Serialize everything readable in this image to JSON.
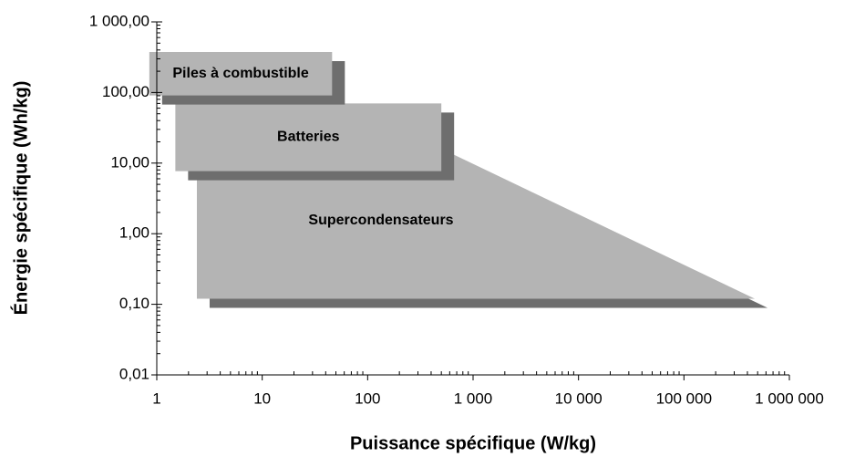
{
  "chart_data": {
    "type": "region",
    "x_label": "Puissance spécifique (W/kg)",
    "y_label": "Énergie spécifique (Wh/kg)",
    "log_x": true,
    "log_y": true,
    "xlim": [
      1,
      1000000
    ],
    "ylim": [
      0.01,
      1000
    ],
    "xticks": [
      1,
      10,
      100,
      {
        "value": 1000,
        "label": "1 000"
      },
      {
        "value": 10000,
        "label": "10 000"
      },
      {
        "value": 100000,
        "label": "100 000"
      },
      {
        "value": 1000000,
        "label": "1 000 000"
      }
    ],
    "yticks": [
      {
        "value": 0.01,
        "label": "0,01"
      },
      {
        "value": 0.1,
        "label": "0,10"
      },
      {
        "value": 1,
        "label": "1,00"
      },
      {
        "value": 10,
        "label": "10,00"
      },
      {
        "value": 100,
        "label": "100,00"
      },
      {
        "value": 1000,
        "label": "1 000,00"
      }
    ],
    "color": "#b4b4b4",
    "shadow_color": "#6e6e6e",
    "series": [
      {
        "name": "Supercondensateurs",
        "x": [
          2.4,
          500,
          470000,
          2.4
        ],
        "y": [
          16,
          16,
          0.12,
          0.12
        ]
      },
      {
        "name": "Batteries",
        "x": [
          1.5,
          500,
          500,
          1.5
        ],
        "y": [
          70,
          70,
          7.7,
          7.7
        ]
      },
      {
        "name": "Piles à combustible",
        "x": [
          0.85,
          46,
          46,
          0.85
        ],
        "y": [
          375,
          375,
          91,
          91
        ]
      }
    ]
  }
}
